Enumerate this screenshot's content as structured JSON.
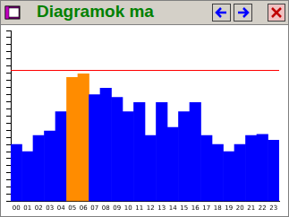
{
  "chart_data": {
    "type": "bar",
    "title": "Diagramok ma",
    "categories": [
      "00",
      "01",
      "02",
      "03",
      "04",
      "05",
      "06",
      "07",
      "08",
      "09",
      "10",
      "11",
      "12",
      "13",
      "14",
      "15",
      "16",
      "17",
      "18",
      "19",
      "20",
      "21",
      "22",
      "23"
    ],
    "values": [
      8.0,
      7.0,
      9.25,
      9.9,
      12.6,
      17.4,
      17.9,
      15.0,
      15.9,
      14.6,
      12.6,
      13.9,
      9.25,
      13.9,
      10.4,
      12.6,
      13.9,
      9.25,
      8.0,
      7.0,
      8.0,
      9.25,
      9.4,
      8.6
    ],
    "colors": [
      "#0000ff",
      "#0000ff",
      "#0000ff",
      "#0000ff",
      "#0000ff",
      "#ff8c00",
      "#ff8c00",
      "#0000ff",
      "#0000ff",
      "#0000ff",
      "#0000ff",
      "#0000ff",
      "#0000ff",
      "#0000ff",
      "#0000ff",
      "#0000ff",
      "#0000ff",
      "#0000ff",
      "#0000ff",
      "#0000ff",
      "#0000ff",
      "#0000ff",
      "#0000ff",
      "#0000ff"
    ],
    "reference_line": {
      "value": 18.4,
      "color": "#ff0000"
    },
    "ylim": [
      0,
      24
    ],
    "yticks": [
      0,
      1,
      2,
      3,
      4,
      5,
      6,
      7,
      8,
      9,
      10,
      11,
      12,
      13,
      14,
      15,
      16,
      17,
      18,
      19,
      20,
      21,
      22,
      23,
      24
    ],
    "tick_labels": "x",
    "grid": false
  }
}
